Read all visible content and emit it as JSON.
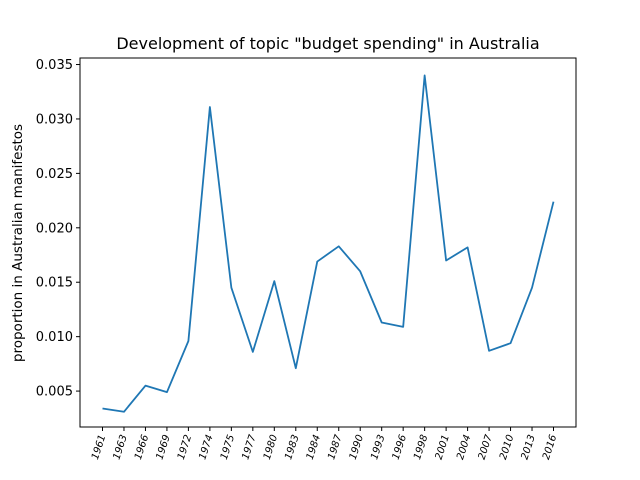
{
  "chart_data": {
    "type": "line",
    "title": "Development of topic \"budget spending\" in Australia",
    "xlabel": "",
    "ylabel": "proportion in Australian manifestos",
    "categories": [
      "1961",
      "1963",
      "1966",
      "1969",
      "1972",
      "1974",
      "1975",
      "1977",
      "1980",
      "1983",
      "1984",
      "1987",
      "1990",
      "1993",
      "1996",
      "1998",
      "2001",
      "2004",
      "2007",
      "2010",
      "2013",
      "2016"
    ],
    "series": [
      {
        "values": [
          0.0034,
          0.0031,
          0.0055,
          0.0049,
          0.0096,
          0.0311,
          0.0145,
          0.0086,
          0.0151,
          0.0071,
          0.0169,
          0.0183,
          0.016,
          0.0113,
          0.0109,
          0.034,
          0.017,
          0.0182,
          0.0087,
          0.0094,
          0.0145,
          0.0224
        ],
        "color": "#1f77b4"
      }
    ],
    "yticks": [
      "0.005",
      "0.010",
      "0.015",
      "0.020",
      "0.025",
      "0.030",
      "0.035"
    ],
    "ylim": [
      0.0017,
      0.0356
    ],
    "grid": false,
    "legend": "none"
  }
}
